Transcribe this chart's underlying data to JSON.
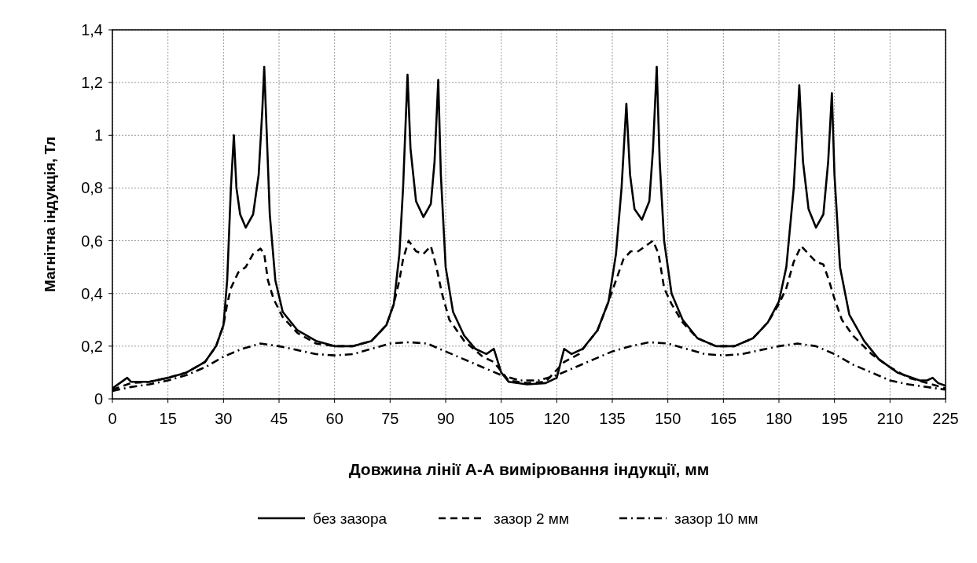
{
  "chart_data": {
    "type": "line",
    "xlabel": "Довжина лінії А-А вимірювання індукції, мм",
    "ylabel": "Магнітна індукція, Тл",
    "xlim": [
      0,
      225
    ],
    "xticks": [
      0,
      15,
      30,
      45,
      60,
      75,
      90,
      105,
      120,
      135,
      150,
      165,
      180,
      195,
      210,
      225
    ],
    "ylim": [
      0,
      1.4
    ],
    "yticks": [
      0,
      {
        "value": 0.2,
        "label": "0,2"
      },
      {
        "value": 0.4,
        "label": "0,4"
      },
      {
        "value": 0.6,
        "label": "0,6"
      },
      {
        "value": 0.8,
        "label": "0,8"
      },
      1,
      {
        "value": 1.2,
        "label": "1,2"
      },
      {
        "value": 1.4,
        "label": "1,4"
      }
    ],
    "grid": true,
    "legend": "bottom",
    "marker": "none",
    "series": [
      {
        "name": "без зазора",
        "color": "#000000",
        "line_style": "solid",
        "x": [
          0,
          2,
          4,
          5,
          10,
          15,
          20,
          25,
          28,
          30,
          31,
          32,
          32.8,
          33.5,
          34.5,
          36,
          38,
          39.5,
          40.5,
          41,
          41.7,
          42.5,
          44,
          46,
          50,
          55,
          60,
          65,
          70,
          74,
          76,
          77.5,
          78.5,
          79.7,
          80.5,
          82,
          84,
          86,
          87,
          88,
          88.7,
          90,
          92,
          95,
          98,
          101,
          103,
          105,
          107,
          112,
          117,
          120,
          122,
          124,
          127,
          131,
          134,
          136,
          137.5,
          138.8,
          139.8,
          141,
          143,
          145,
          146,
          147,
          147.8,
          149,
          151,
          154,
          158,
          163,
          168,
          173,
          177,
          180,
          182,
          184,
          185.5,
          186.5,
          188,
          190,
          192,
          193.3,
          194.3,
          195,
          196.5,
          199,
          203,
          207,
          212,
          218,
          220,
          221.5,
          223,
          225
        ],
        "values": [
          0.04,
          0.06,
          0.08,
          0.065,
          0.065,
          0.08,
          0.1,
          0.14,
          0.2,
          0.28,
          0.45,
          0.8,
          1.0,
          0.8,
          0.7,
          0.65,
          0.7,
          0.85,
          1.1,
          1.26,
          1.0,
          0.7,
          0.45,
          0.33,
          0.26,
          0.22,
          0.2,
          0.2,
          0.22,
          0.28,
          0.36,
          0.55,
          0.8,
          1.23,
          0.95,
          0.75,
          0.69,
          0.74,
          0.9,
          1.21,
          0.85,
          0.5,
          0.33,
          0.24,
          0.19,
          0.17,
          0.19,
          0.1,
          0.065,
          0.055,
          0.06,
          0.08,
          0.19,
          0.17,
          0.19,
          0.26,
          0.37,
          0.55,
          0.8,
          1.12,
          0.85,
          0.72,
          0.68,
          0.75,
          0.95,
          1.26,
          0.9,
          0.6,
          0.4,
          0.3,
          0.23,
          0.2,
          0.2,
          0.23,
          0.29,
          0.37,
          0.5,
          0.8,
          1.19,
          0.9,
          0.72,
          0.65,
          0.7,
          0.9,
          1.16,
          0.85,
          0.5,
          0.32,
          0.22,
          0.15,
          0.1,
          0.07,
          0.07,
          0.08,
          0.06,
          0.05
        ]
      },
      {
        "name": "зазор 2 мм",
        "color": "#000000",
        "line_style": "dashed",
        "x": [
          0,
          5,
          10,
          15,
          20,
          25,
          28,
          30,
          31,
          32,
          34,
          36,
          38,
          40,
          41,
          42,
          43.5,
          46,
          50,
          55,
          60,
          65,
          70,
          74,
          76,
          77.5,
          78.5,
          80,
          82,
          84,
          86,
          87.5,
          89,
          91,
          95,
          100,
          103,
          107,
          112,
          117,
          122,
          126,
          131,
          134,
          136,
          138,
          140,
          142,
          144,
          146,
          147.5,
          149,
          151,
          154,
          158,
          163,
          168,
          173,
          177,
          180,
          182,
          184,
          186,
          188,
          190,
          192,
          193.5,
          195,
          197,
          200,
          205,
          210,
          215,
          220,
          225
        ],
        "values": [
          0.035,
          0.06,
          0.065,
          0.08,
          0.1,
          0.14,
          0.2,
          0.28,
          0.36,
          0.42,
          0.48,
          0.5,
          0.55,
          0.57,
          0.55,
          0.45,
          0.38,
          0.31,
          0.25,
          0.21,
          0.2,
          0.2,
          0.22,
          0.28,
          0.36,
          0.45,
          0.53,
          0.6,
          0.56,
          0.55,
          0.58,
          0.5,
          0.4,
          0.3,
          0.22,
          0.16,
          0.14,
          0.07,
          0.06,
          0.065,
          0.14,
          0.17,
          0.26,
          0.37,
          0.45,
          0.53,
          0.56,
          0.56,
          0.58,
          0.6,
          0.55,
          0.42,
          0.36,
          0.29,
          0.23,
          0.2,
          0.2,
          0.23,
          0.29,
          0.36,
          0.42,
          0.52,
          0.58,
          0.55,
          0.52,
          0.51,
          0.45,
          0.38,
          0.3,
          0.24,
          0.17,
          0.12,
          0.08,
          0.06,
          0.04
        ]
      },
      {
        "name": "зазор 10 мм",
        "color": "#000000",
        "line_style": "dashdot",
        "x": [
          0,
          5,
          10,
          15,
          20,
          25,
          30,
          35,
          40,
          45,
          50,
          55,
          60,
          65,
          70,
          75,
          80,
          85,
          90,
          95,
          100,
          105,
          110,
          115,
          120,
          125,
          130,
          135,
          140,
          145,
          150,
          155,
          160,
          165,
          170,
          175,
          180,
          185,
          190,
          195,
          200,
          205,
          210,
          215,
          220,
          225
        ],
        "values": [
          0.03,
          0.045,
          0.055,
          0.07,
          0.09,
          0.12,
          0.16,
          0.19,
          0.21,
          0.2,
          0.185,
          0.17,
          0.165,
          0.17,
          0.19,
          0.21,
          0.215,
          0.21,
          0.18,
          0.15,
          0.12,
          0.09,
          0.07,
          0.07,
          0.09,
          0.12,
          0.15,
          0.18,
          0.2,
          0.215,
          0.21,
          0.19,
          0.17,
          0.165,
          0.17,
          0.185,
          0.2,
          0.21,
          0.2,
          0.17,
          0.13,
          0.1,
          0.07,
          0.055,
          0.045,
          0.035
        ]
      }
    ]
  }
}
